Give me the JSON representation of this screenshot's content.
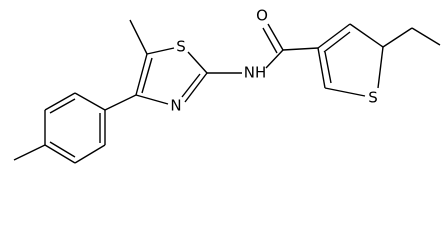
{
  "atoms": [
    {
      "label": "O"
    },
    {
      "label": "NH"
    },
    {
      "label": "S"
    },
    {
      "label": "N"
    },
    {
      "label": "S"
    }
  ]
}
